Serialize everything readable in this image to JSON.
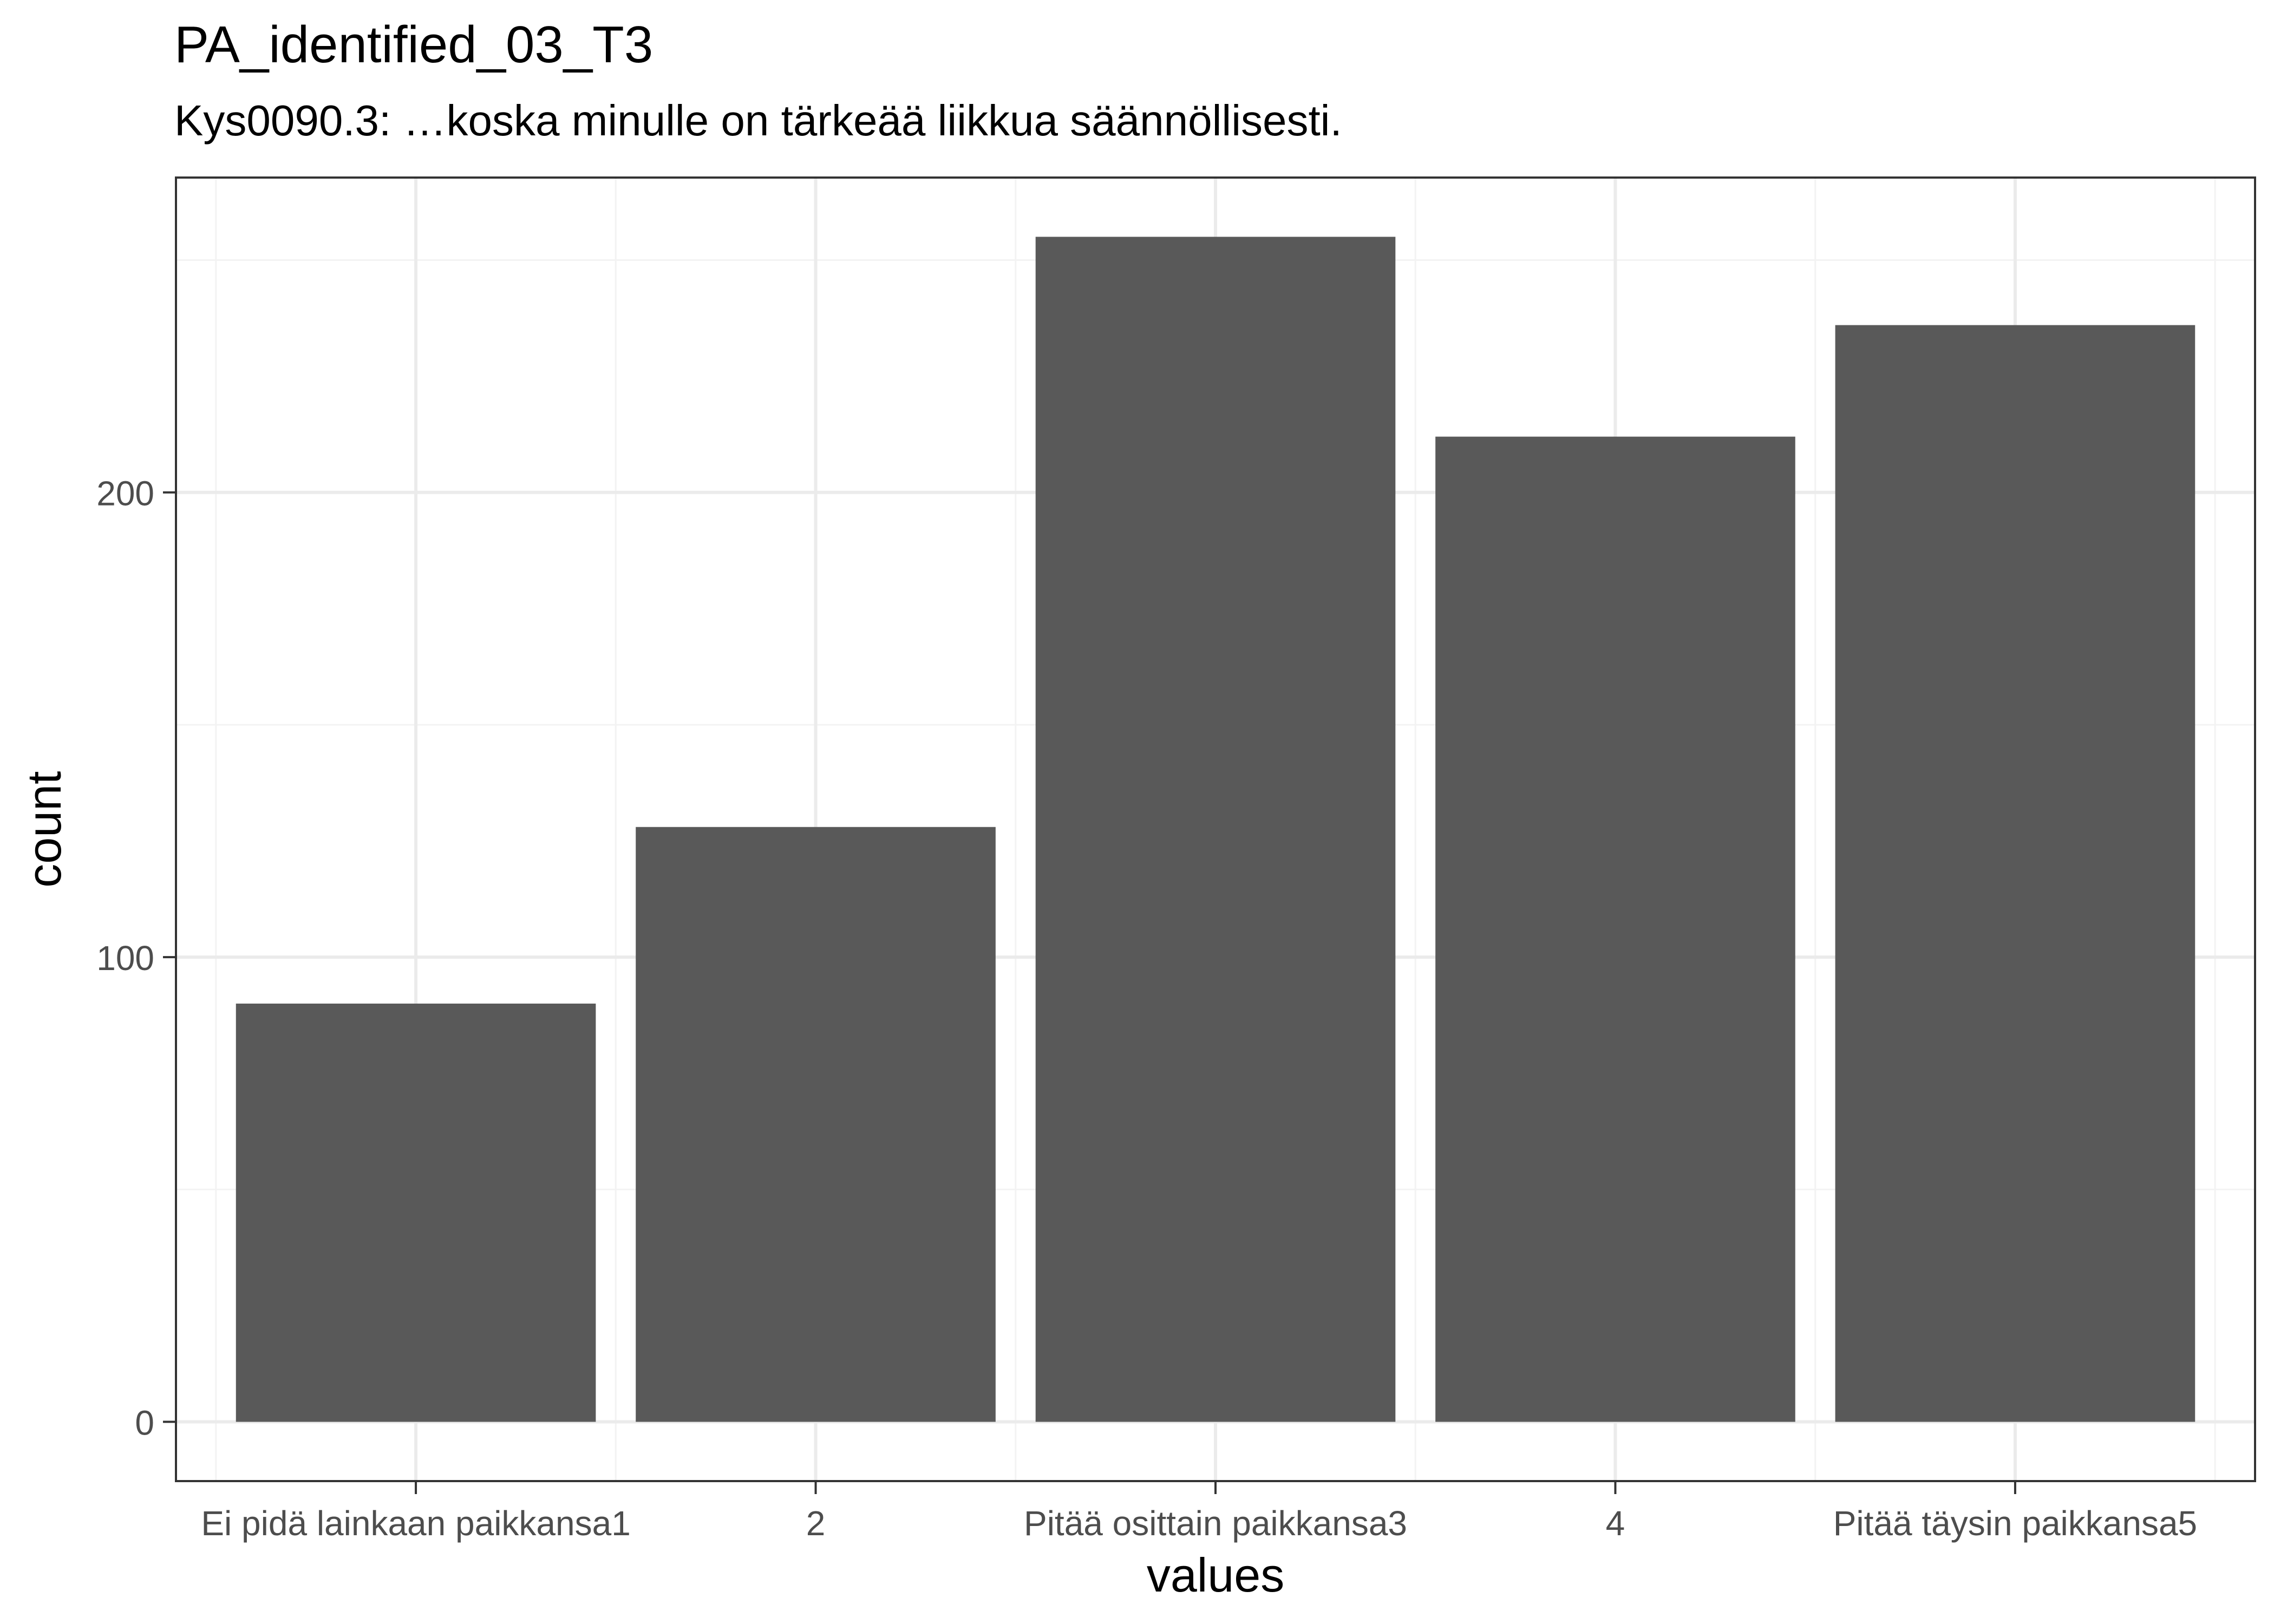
{
  "chart_data": {
    "type": "bar",
    "title": "PA_identified_03_T3",
    "subtitle": "Kys0090.3: …koska minulle on tärkeää liikkua säännöllisesti.",
    "xlabel": "values",
    "ylabel": "count",
    "categories": [
      "Ei pidä lainkaan paikkansa1",
      "2",
      "Pitää osittain paikkansa3",
      "4",
      "Pitää täysin paikkansa5"
    ],
    "values": [
      90,
      128,
      255,
      212,
      236
    ],
    "ylim": [
      -12.75,
      267.75
    ],
    "y_ticks": [
      0,
      100,
      200
    ],
    "y_minor_ticks": [
      50,
      150,
      250
    ],
    "grid": true,
    "colors": {
      "bar": "#595959",
      "grid_major": "#ebebeb",
      "grid_minor": "#f3f3f3",
      "panel_border": "#333333",
      "tick_text": "#4d4d4d",
      "title_text": "#000000"
    }
  }
}
